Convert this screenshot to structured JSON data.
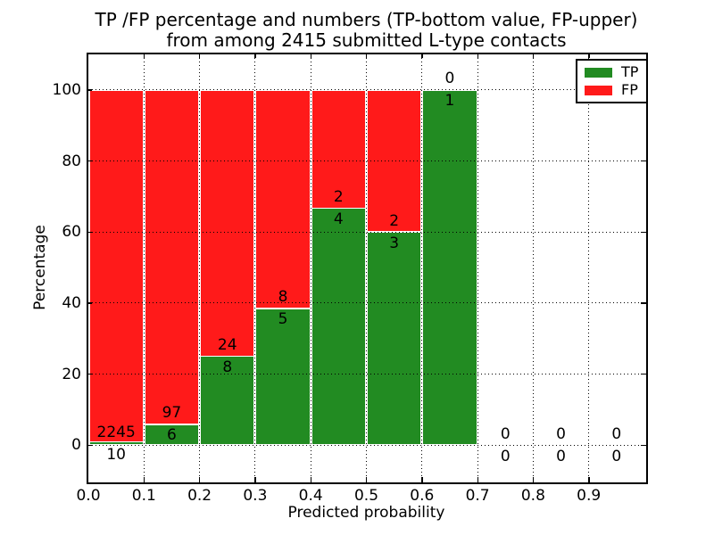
{
  "title": {
    "line1": "TP /FP percentage and numbers (TP-bottom value, FP-upper)",
    "line2": "from among 2415 submitted L-type contacts"
  },
  "axes": {
    "xlabel": "Predicted probability",
    "ylabel": "Percentage",
    "xlim": [
      0.0,
      1.0
    ],
    "ylim": [
      -10,
      110
    ],
    "xticks": [
      "0.0",
      "0.1",
      "0.2",
      "0.3",
      "0.4",
      "0.5",
      "0.6",
      "0.7",
      "0.8",
      "0.9"
    ],
    "yticks": [
      "0",
      "20",
      "40",
      "60",
      "80",
      "100"
    ],
    "grid": "dotted"
  },
  "legend": {
    "position": "upper right",
    "entries": [
      {
        "label": "TP",
        "color": "#228b22"
      },
      {
        "label": "FP",
        "color": "#ff1a1a"
      }
    ]
  },
  "chart_data": {
    "type": "bar",
    "stacked": true,
    "orientation": "vertical",
    "bin_width": 0.1,
    "description": "Each bar spans 0.1 of predicted probability; green (TP) bottom portion height = tp/(tp+fp)*100 %, red (FP) fills up to 100 %. FP count printed above the TP/FP boundary, TP count below it.",
    "bins": [
      {
        "x0": 0.0,
        "tp": 10,
        "fp": 2245
      },
      {
        "x0": 0.1,
        "tp": 6,
        "fp": 97
      },
      {
        "x0": 0.2,
        "tp": 8,
        "fp": 24
      },
      {
        "x0": 0.3,
        "tp": 5,
        "fp": 8
      },
      {
        "x0": 0.4,
        "tp": 4,
        "fp": 2
      },
      {
        "x0": 0.5,
        "tp": 3,
        "fp": 2
      },
      {
        "x0": 0.6,
        "tp": 1,
        "fp": 0
      },
      {
        "x0": 0.7,
        "tp": 0,
        "fp": 0
      },
      {
        "x0": 0.8,
        "tp": 0,
        "fp": 0
      },
      {
        "x0": 0.9,
        "tp": 0,
        "fp": 0
      }
    ],
    "colors": {
      "tp": "#228b22",
      "fp": "#ff1a1a",
      "bar_edge": "#ffffff",
      "grid": "#000000",
      "text": "#000000",
      "axis": "#000000"
    }
  }
}
